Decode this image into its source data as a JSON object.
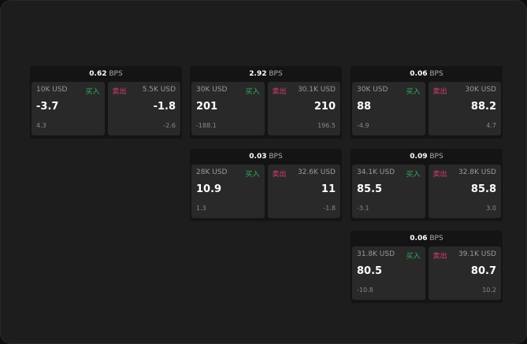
{
  "unit": "BPS",
  "buy_label": "买入",
  "sell_label": "卖出",
  "panels": [
    {
      "spread": "0.62",
      "bid_size": "10K USD",
      "bid": "-3.7",
      "bid_chg": "4.3",
      "ask_size": "5.5K USD",
      "ask": "-1.8",
      "ask_chg": "-2.6"
    },
    {
      "spread": "2.92",
      "bid_size": "30K USD",
      "bid": "201",
      "bid_chg": "-188.1",
      "ask_size": "30.1K USD",
      "ask": "210",
      "ask_chg": "196.5"
    },
    {
      "spread": "0.06",
      "bid_size": "30K USD",
      "bid": "88",
      "bid_chg": "-4.9",
      "ask_size": "30K USD",
      "ask": "88.2",
      "ask_chg": "4.7"
    },
    {
      "spread": "0.03",
      "bid_size": "28K USD",
      "bid": "10.9",
      "bid_chg": "1.3",
      "ask_size": "32.6K USD",
      "ask": "11",
      "ask_chg": "-1.8"
    },
    {
      "spread": "0.09",
      "bid_size": "34.1K USD",
      "bid": "85.5",
      "bid_chg": "-3.1",
      "ask_size": "32.8K USD",
      "ask": "85.8",
      "ask_chg": "3.0"
    },
    {
      "spread": "0.06",
      "bid_size": "31.8K USD",
      "bid": "80.5",
      "bid_chg": "-10.8",
      "ask_size": "39.1K USD",
      "ask": "80.7",
      "ask_chg": "10.2"
    }
  ]
}
